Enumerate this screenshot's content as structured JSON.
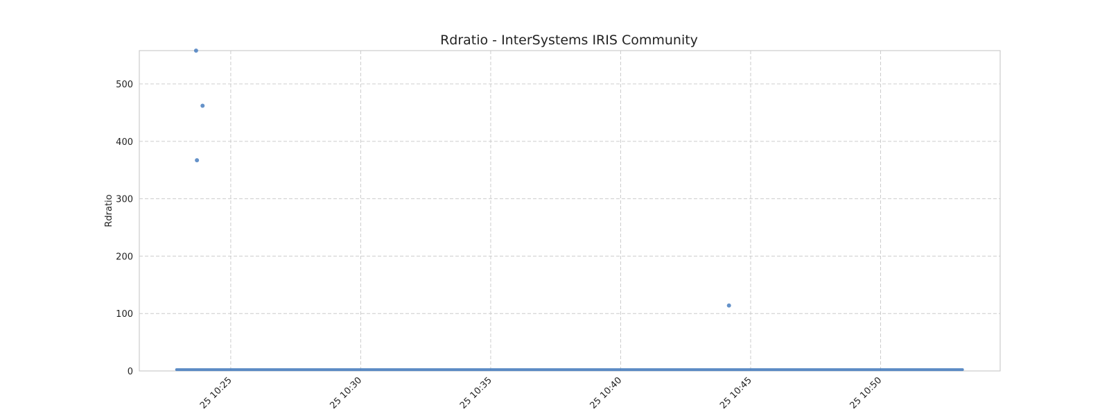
{
  "chart_data": {
    "type": "scatter",
    "title": "Rdratio - InterSystems IRIS Community",
    "xlabel": "",
    "ylabel": "Rdratio",
    "x_axis_kind": "time",
    "xlim": [
      "10:21:29",
      "10:54:36"
    ],
    "ylim": [
      0,
      558
    ],
    "yticks": [
      0,
      100,
      200,
      300,
      400,
      500
    ],
    "yticklabels": [
      "0",
      "100",
      "200",
      "300",
      "400",
      "500"
    ],
    "xticks": [
      "10:25",
      "10:30",
      "10:35",
      "10:40",
      "10:45",
      "10:50"
    ],
    "xticklabels": [
      "25 10:25",
      "25 10:30",
      "25 10:35",
      "25 10:40",
      "25 10:45",
      "25 10:50"
    ],
    "grid": true,
    "legend": "none",
    "marker_color": "#4a7fbf",
    "baseline_series": {
      "x_start": "10:22:55",
      "x_end": "10:53:09",
      "y": 1
    },
    "points": [
      {
        "x": "10:23:40",
        "y": 558
      },
      {
        "x": "10:23:55",
        "y": 462
      },
      {
        "x": "10:23:42",
        "y": 367
      },
      {
        "x": "10:44:10",
        "y": 114
      }
    ]
  }
}
